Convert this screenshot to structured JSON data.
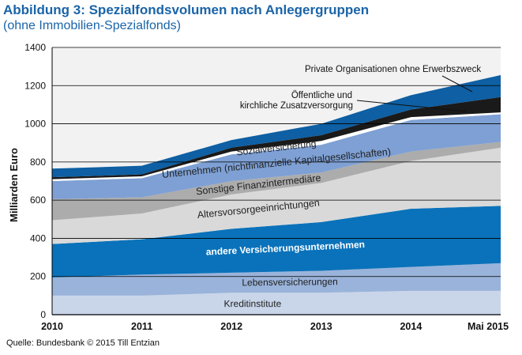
{
  "title": "Abbildung 3: Spezialfondsvolumen nach Anlegergruppen",
  "subtitle": "(ohne Immobilien-Spezialfonds)",
  "source": "Quelle: Bundesbank © 2015 Till Entzian",
  "chart_data": {
    "type": "area",
    "stacked": true,
    "ylabel": "Milliarden Euro",
    "xlabel": "",
    "ylim": [
      0,
      1400
    ],
    "yticks": [
      0,
      200,
      400,
      600,
      800,
      1000,
      1200,
      1400
    ],
    "grid": "horizontal",
    "categories": [
      "2010",
      "2011",
      "2012",
      "2013",
      "2014",
      "Mai 2015"
    ],
    "series": [
      {
        "name": "Kreditinstitute",
        "color": "#c9d6ea",
        "values": [
          100,
          100,
          115,
          115,
          125,
          125
        ]
      },
      {
        "name": "Lebensversicherungen",
        "color": "#9ab3da",
        "values": [
          95,
          110,
          105,
          115,
          125,
          145
        ]
      },
      {
        "name": "andere Versicherungsunternehmen",
        "color": "#0a72ba",
        "values": [
          175,
          185,
          230,
          255,
          305,
          300
        ]
      },
      {
        "name": "Altersvorsorgeeinrichtungen",
        "color": "#d9d9d9",
        "values": [
          125,
          135,
          180,
          205,
          250,
          305
        ]
      },
      {
        "name": "Sonstige Finanzintermediäre",
        "color": "#acacac",
        "values": [
          110,
          85,
          70,
          55,
          50,
          30
        ]
      },
      {
        "name": "Unternehmen (nichtfinanzielle Kapitalgesellschaften)",
        "color": "#7ea0d4",
        "values": [
          95,
          100,
          140,
          145,
          165,
          145
        ]
      },
      {
        "name": "Sozialversicherung",
        "color": "#ffffff",
        "values": [
          10,
          10,
          15,
          20,
          15,
          10
        ]
      },
      {
        "name": "Öffentliche und kirchliche Zusatzversorgung",
        "color": "#1a1a1a",
        "values": [
          10,
          10,
          20,
          30,
          40,
          80
        ]
      },
      {
        "name": "Private Organisationen ohne Erwerbszweck",
        "color": "#0e5fa3",
        "values": [
          45,
          45,
          40,
          60,
          75,
          115
        ]
      }
    ],
    "area_labels": [
      {
        "text": "Kreditinstitute",
        "color": "#222222",
        "bold": false
      },
      {
        "text": "Lebensversicherungen",
        "color": "#222222",
        "bold": false
      },
      {
        "text": "andere Versicherungsunternehmen",
        "color": "#ffffff",
        "bold": true
      },
      {
        "text": "Altersvorsorgeeinrichtungen",
        "color": "#222222",
        "bold": false
      },
      {
        "text": "Sonstige Finanzintermediäre",
        "color": "#222222",
        "bold": false
      },
      {
        "text": "Unternehmen (nichtfinanzielle Kapitalgesellschaften)",
        "color": "#222222",
        "bold": false
      },
      {
        "text": "Sozialversicherung",
        "color": "#222222",
        "bold": false
      }
    ],
    "annotations": [
      {
        "text": "Private Organisationen ohne Erwerbszweck"
      },
      {
        "text_lines": [
          "Öffentliche und",
          "kirchliche Zusatzversorgung"
        ]
      }
    ]
  }
}
